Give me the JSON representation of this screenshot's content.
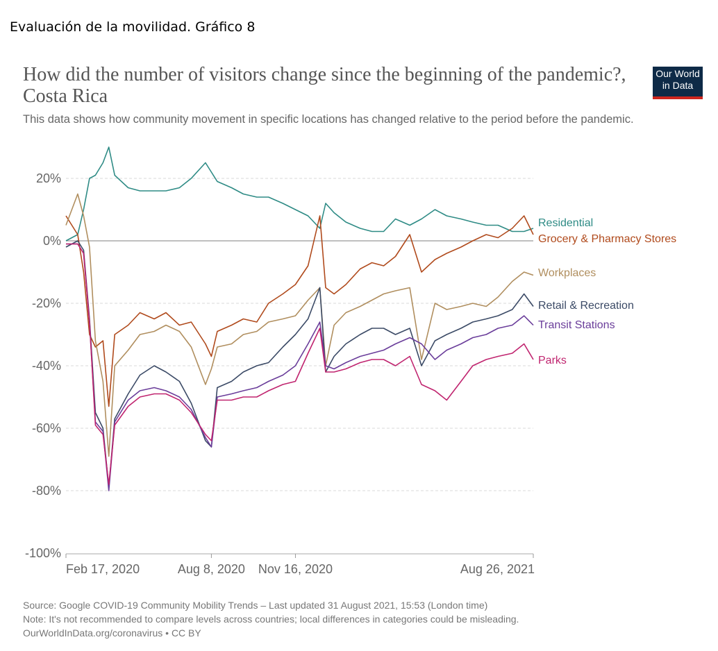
{
  "page_heading": "Evaluación de la movilidad. Gráfico 8",
  "logo": {
    "line1": "Our World",
    "line2": "in Data"
  },
  "footer": {
    "source": "Source: Google COVID-19 Community Mobility Trends – Last updated 31 August 2021, 15:53 (London time)",
    "note": "Note: It's not recommended to compare levels across countries; local differences in categories could be misleading.",
    "credit": "OurWorldInData.org/coronavirus • CC BY"
  },
  "colors": {
    "Residential": "#2e8b85",
    "Grocery & Pharmacy Stores": "#b04a1c",
    "Workplaces": "#b08e5e",
    "Retail & Recreation": "#3b4a66",
    "Transit Stations": "#6a3d9a",
    "Parks": "#c0246f"
  },
  "chart_data": {
    "type": "line",
    "title": "How did the number of visitors change since the beginning of the pandemic?, Costa Rica",
    "subtitle": "This data shows how community movement in specific locations has changed relative to the period before the pandemic.",
    "xlabel": "",
    "ylabel": "",
    "ylim": [
      -100,
      30
    ],
    "y_ticks": [
      20,
      0,
      -20,
      -40,
      -60,
      -80,
      -100
    ],
    "y_tick_labels": [
      "20%",
      "0%",
      "-20%",
      "-40%",
      "-60%",
      "-80%",
      "-100%"
    ],
    "xlim": [
      "2020-02-17",
      "2021-08-26"
    ],
    "x_ticks": [
      "2020-02-17",
      "2020-08-08",
      "2020-11-16",
      "2021-08-26"
    ],
    "x_tick_labels": [
      "Feb 17, 2020",
      "Aug 8, 2020",
      "Nov 16, 2020",
      "Aug 26, 2021"
    ],
    "grid": "horizontal dashed",
    "legend": "line-end labels (right)",
    "x": [
      "2020-02-17",
      "2020-03-02",
      "2020-03-09",
      "2020-03-16",
      "2020-03-23",
      "2020-04-01",
      "2020-04-08",
      "2020-04-15",
      "2020-05-01",
      "2020-05-15",
      "2020-06-01",
      "2020-06-15",
      "2020-07-01",
      "2020-07-15",
      "2020-08-01",
      "2020-08-08",
      "2020-08-15",
      "2020-09-01",
      "2020-09-15",
      "2020-10-01",
      "2020-10-15",
      "2020-11-01",
      "2020-11-16",
      "2020-12-01",
      "2020-12-15",
      "2020-12-22",
      "2021-01-01",
      "2021-01-15",
      "2021-02-01",
      "2021-02-15",
      "2021-03-01",
      "2021-03-15",
      "2021-04-01",
      "2021-04-15",
      "2021-05-01",
      "2021-05-15",
      "2021-06-01",
      "2021-06-15",
      "2021-07-01",
      "2021-07-15",
      "2021-08-01",
      "2021-08-15",
      "2021-08-26"
    ],
    "series": [
      {
        "name": "Residential",
        "values": [
          0,
          2,
          10,
          20,
          21,
          25,
          30,
          21,
          17,
          16,
          16,
          16,
          17,
          20,
          25,
          22,
          19,
          17,
          15,
          14,
          14,
          12,
          10,
          8,
          4,
          12,
          9,
          6,
          4,
          3,
          3,
          7,
          5,
          7,
          10,
          8,
          7,
          6,
          5,
          5,
          3,
          3,
          4
        ]
      },
      {
        "name": "Grocery & Pharmacy Stores",
        "values": [
          8,
          2,
          -10,
          -30,
          -34,
          -32,
          -53,
          -30,
          -27,
          -23,
          -25,
          -23,
          -27,
          -26,
          -33,
          -37,
          -29,
          -27,
          -25,
          -26,
          -20,
          -17,
          -14,
          -8,
          8,
          -15,
          -17,
          -14,
          -9,
          -7,
          -8,
          -5,
          2,
          -10,
          -6,
          -4,
          -2,
          0,
          2,
          1,
          4,
          8,
          2
        ]
      },
      {
        "name": "Workplaces",
        "values": [
          5,
          15,
          8,
          -2,
          -32,
          -45,
          -69,
          -40,
          -35,
          -30,
          -29,
          -27,
          -29,
          -34,
          -46,
          -41,
          -34,
          -33,
          -30,
          -29,
          -26,
          -25,
          -24,
          -19,
          -15,
          -40,
          -27,
          -23,
          -21,
          -19,
          -17,
          -16,
          -15,
          -38,
          -20,
          -22,
          -21,
          -20,
          -21,
          -18,
          -13,
          -10,
          -11
        ]
      },
      {
        "name": "Retail & Recreation",
        "values": [
          -2,
          0,
          -3,
          -25,
          -55,
          -60,
          -79,
          -57,
          -49,
          -43,
          -40,
          -42,
          -45,
          -52,
          -64,
          -66,
          -47,
          -45,
          -42,
          -40,
          -39,
          -34,
          -30,
          -25,
          -15,
          -42,
          -37,
          -33,
          -30,
          -28,
          -28,
          -30,
          -28,
          -40,
          -32,
          -30,
          -28,
          -26,
          -25,
          -24,
          -22,
          -17,
          -21
        ]
      },
      {
        "name": "Transit Stations",
        "values": [
          -1,
          -1,
          -4,
          -26,
          -58,
          -61,
          -80,
          -58,
          -51,
          -48,
          -47,
          -48,
          -50,
          -54,
          -63,
          -66,
          -50,
          -49,
          -48,
          -47,
          -45,
          -43,
          -40,
          -33,
          -26,
          -40,
          -41,
          -39,
          -37,
          -36,
          -35,
          -33,
          -31,
          -33,
          -38,
          -35,
          -33,
          -31,
          -30,
          -28,
          -27,
          -24,
          -27
        ]
      },
      {
        "name": "Parks",
        "values": [
          -1,
          -1,
          -4,
          -26,
          -59,
          -62,
          -78,
          -59,
          -53,
          -50,
          -49,
          -49,
          -51,
          -55,
          -62,
          -64,
          -51,
          -51,
          -50,
          -50,
          -48,
          -46,
          -45,
          -36,
          -28,
          -42,
          -42,
          -41,
          -39,
          -38,
          -38,
          -40,
          -37,
          -46,
          -48,
          -51,
          -45,
          -40,
          -38,
          -37,
          -36,
          -33,
          -38
        ]
      }
    ]
  }
}
